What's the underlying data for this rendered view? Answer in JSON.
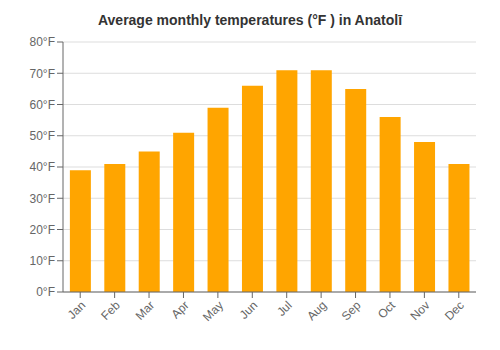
{
  "chart_data": {
    "type": "bar",
    "title": "Average monthly temperatures (°F ) in Anatolī",
    "categories": [
      "Jan",
      "Feb",
      "Mar",
      "Apr",
      "May",
      "Jun",
      "Jul",
      "Aug",
      "Sep",
      "Oct",
      "Nov",
      "Dec"
    ],
    "values": [
      39,
      41,
      45,
      51,
      59,
      66,
      71,
      71,
      65,
      56,
      48,
      41
    ],
    "color": "#FFA500",
    "ylim": [
      0,
      80
    ],
    "yticks": [
      {
        "value": 0,
        "label": "0°F"
      },
      {
        "value": 10,
        "label": "10°F"
      },
      {
        "value": 20,
        "label": "20°F"
      },
      {
        "value": 30,
        "label": "30°F"
      },
      {
        "value": 40,
        "label": "40°F"
      },
      {
        "value": 50,
        "label": "50°F"
      },
      {
        "value": 60,
        "label": "60°F"
      },
      {
        "value": 70,
        "label": "70°F"
      },
      {
        "value": 80,
        "label": "80°F"
      }
    ],
    "grid": true
  }
}
